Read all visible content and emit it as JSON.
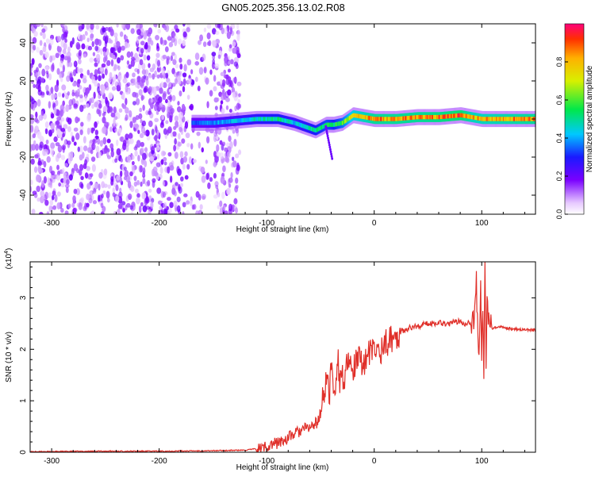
{
  "title": "GN05.2025.356.13.02.R08",
  "chart_data": [
    {
      "type": "heatmap",
      "xlabel": "Height of straight line (km)",
      "ylabel": "Frequency (Hz)",
      "xlim": [
        -320,
        150
      ],
      "ylim": [
        -50,
        50
      ],
      "xticks": [
        -300,
        -200,
        -100,
        0,
        100
      ],
      "yticks": [
        -40,
        -20,
        0,
        20,
        40
      ],
      "colorbar": {
        "label": "Normalized spectral amplitude",
        "range": [
          0,
          1
        ],
        "ticks": [
          0.0,
          0.2,
          0.4,
          0.6,
          0.8
        ]
      },
      "noise_region": {
        "x": [
          -320,
          -125
        ],
        "y": [
          -50,
          50
        ]
      },
      "signal_band": {
        "x": [
          -170,
          -150,
          -130,
          -110,
          -90,
          -75,
          -65,
          -55,
          -45,
          -38,
          -30,
          -20,
          -10,
          0,
          20,
          40,
          60,
          80,
          90,
          100,
          150
        ],
        "y": [
          -2,
          -2,
          -1,
          0,
          0,
          -2,
          -4,
          -6,
          -3,
          -3,
          -2,
          2,
          1,
          0,
          0,
          1,
          1,
          2,
          1,
          0,
          0
        ],
        "amplitude": [
          0.35,
          0.4,
          0.45,
          0.5,
          0.55,
          0.45,
          0.5,
          0.55,
          0.6,
          0.55,
          0.65,
          0.8,
          0.85,
          0.9,
          0.9,
          0.9,
          0.92,
          0.95,
          0.85,
          0.85,
          0.9
        ]
      }
    },
    {
      "type": "line",
      "xlabel": "Height of straight line (km)",
      "ylabel": "SNR (10 * v/v)",
      "y_scale_note": "(x10^4)",
      "xlim": [
        -320,
        150
      ],
      "ylim": [
        0,
        3.7
      ],
      "xticks": [
        -300,
        -200,
        -100,
        0,
        100
      ],
      "yticks": [
        0,
        1,
        2,
        3
      ],
      "series": [
        {
          "color": "#e0302a",
          "x": [
            -320,
            -250,
            -200,
            -150,
            -120,
            -105,
            -95,
            -85,
            -75,
            -65,
            -58,
            -52,
            -48,
            -44,
            -42,
            -40,
            -38,
            -36,
            -34,
            -32,
            -30,
            -28,
            -25,
            -20,
            -15,
            -10,
            -5,
            0,
            5,
            10,
            15,
            20,
            25,
            30,
            40,
            50,
            60,
            70,
            80,
            85,
            90,
            93,
            95,
            97,
            99,
            100,
            101,
            102,
            103,
            104,
            105,
            108,
            110,
            115,
            120,
            130,
            140,
            150
          ],
          "y": [
            0.01,
            0.02,
            0.02,
            0.03,
            0.04,
            0.08,
            0.15,
            0.22,
            0.35,
            0.45,
            0.5,
            0.6,
            1.0,
            1.5,
            1.0,
            1.75,
            1.2,
            1.3,
            1.9,
            1.4,
            1.6,
            1.3,
            1.7,
            1.6,
            1.8,
            1.75,
            1.9,
            2.0,
            1.95,
            2.1,
            2.2,
            2.25,
            2.35,
            2.4,
            2.45,
            2.5,
            2.52,
            2.5,
            2.55,
            2.5,
            2.55,
            2.5,
            3.3,
            1.7,
            3.15,
            2.0,
            2.9,
            1.6,
            3.6,
            1.75,
            2.8,
            2.5,
            2.4,
            2.43,
            2.42,
            2.4,
            2.38,
            2.37
          ]
        }
      ]
    }
  ]
}
